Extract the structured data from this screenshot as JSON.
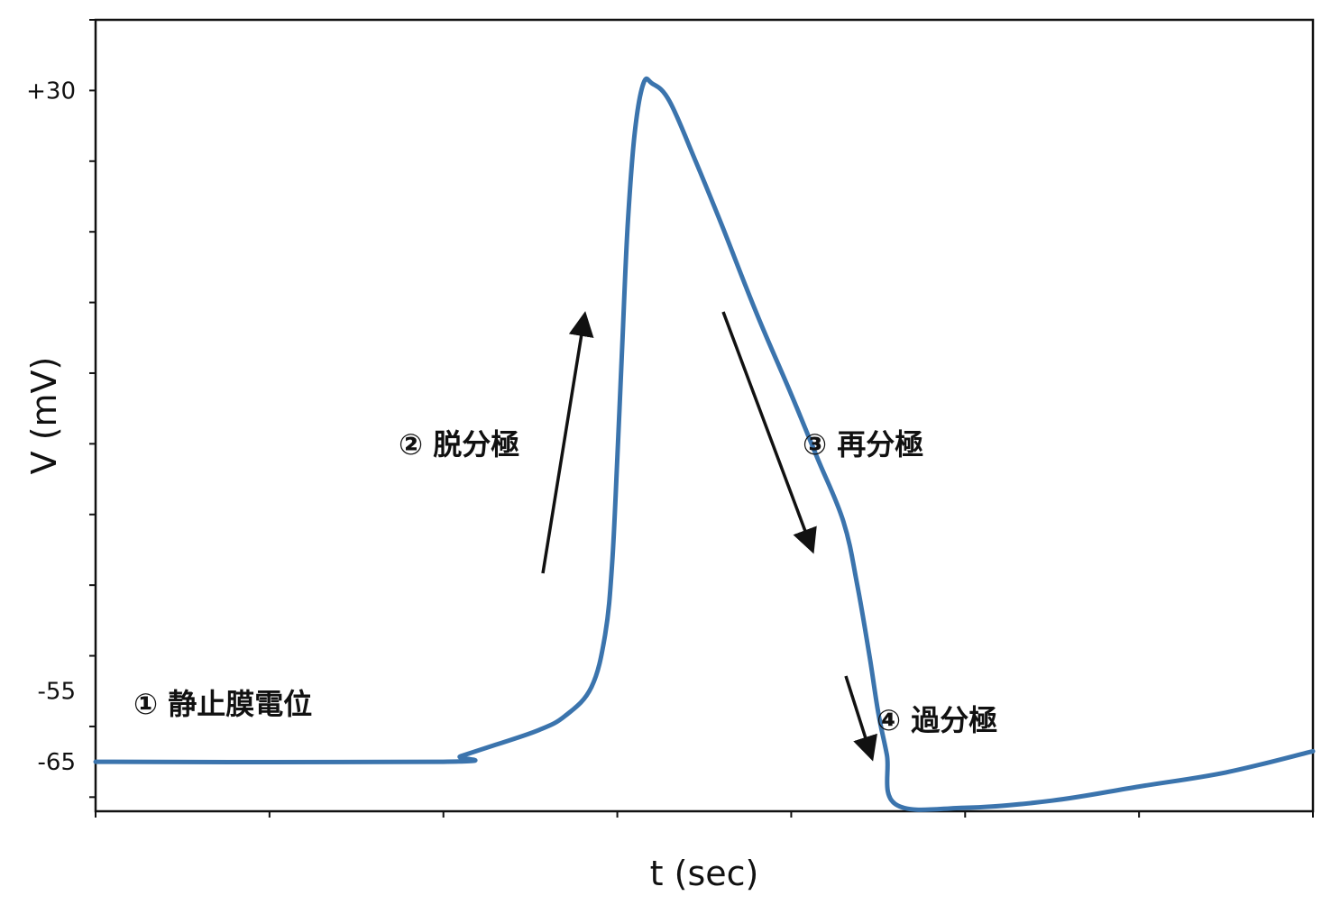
{
  "chart_data": {
    "type": "line",
    "xlabel": "t (sec)",
    "ylabel": "V (mV)",
    "ylim": [
      -72,
      40
    ],
    "y_tick_labels": [
      {
        "value": 30,
        "label": "+30"
      },
      {
        "value": -55,
        "label": "-55"
      },
      {
        "value": -65,
        "label": "-65"
      }
    ],
    "y_minor_ticks": [
      40,
      30,
      20,
      10,
      0,
      -10,
      -20,
      -30,
      -40,
      -50,
      -60,
      -70
    ],
    "x_ticks": [
      0,
      1,
      2,
      3,
      4,
      5,
      6,
      7
    ],
    "grid": false,
    "line_color": "#3b74ad",
    "series": [
      {
        "x": [
          0,
          2.0,
          2.1,
          2.3,
          2.55,
          2.7,
          2.85,
          2.93,
          2.97,
          3.0,
          3.03,
          3.06,
          3.1,
          3.15,
          3.2,
          3.3,
          3.45,
          3.6,
          3.8,
          4.0,
          4.15,
          4.3,
          4.38,
          4.45,
          4.5,
          4.55,
          4.6,
          5.0,
          5.5,
          6.0,
          6.5,
          7.0
        ],
        "y": [
          -65,
          -65,
          -64.2,
          -62.6,
          -60.5,
          -58.5,
          -54.5,
          -47,
          -37,
          -22,
          -5,
          11,
          24,
          31,
          31,
          28.5,
          20,
          11,
          -1.5,
          -13,
          -22,
          -31,
          -40,
          -50,
          -58,
          -64,
          -71,
          -71.5,
          -70.5,
          -68.5,
          -66.5,
          -63.5
        ]
      }
    ],
    "annotations": [
      {
        "id": "resting",
        "text": "① 静止膜電位"
      },
      {
        "id": "depolarization",
        "text": "② 脱分極"
      },
      {
        "id": "repolarization",
        "text": "③ 再分極"
      },
      {
        "id": "hyperpolarization",
        "text": "④ 過分極"
      }
    ]
  }
}
